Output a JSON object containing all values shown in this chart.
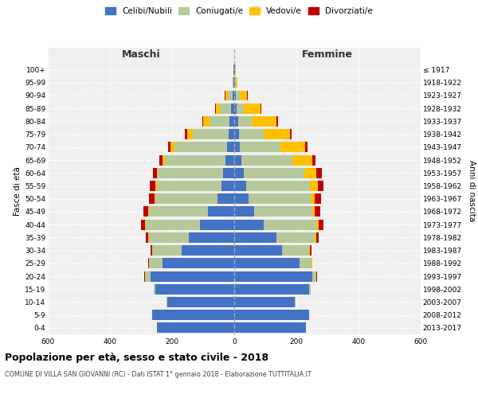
{
  "age_groups": [
    "0-4",
    "5-9",
    "10-14",
    "15-19",
    "20-24",
    "25-29",
    "30-34",
    "35-39",
    "40-44",
    "45-49",
    "50-54",
    "55-59",
    "60-64",
    "65-69",
    "70-74",
    "75-79",
    "80-84",
    "85-89",
    "90-94",
    "95-99",
    "100+"
  ],
  "birth_years": [
    "2013-2017",
    "2008-2012",
    "2003-2007",
    "1998-2002",
    "1993-1997",
    "1988-1992",
    "1983-1987",
    "1978-1982",
    "1973-1977",
    "1968-1972",
    "1963-1967",
    "1958-1962",
    "1953-1957",
    "1948-1952",
    "1943-1947",
    "1938-1942",
    "1933-1937",
    "1928-1932",
    "1923-1927",
    "1918-1922",
    "≤ 1917"
  ],
  "males": {
    "celibi": [
      250,
      265,
      215,
      255,
      270,
      230,
      170,
      145,
      110,
      85,
      55,
      40,
      35,
      28,
      22,
      18,
      15,
      10,
      5,
      2,
      2
    ],
    "coniugati": [
      0,
      0,
      2,
      5,
      18,
      45,
      95,
      130,
      175,
      190,
      200,
      210,
      210,
      195,
      170,
      115,
      65,
      35,
      15,
      2,
      0
    ],
    "vedovi": [
      0,
      0,
      0,
      0,
      0,
      0,
      0,
      1,
      2,
      2,
      2,
      3,
      5,
      8,
      12,
      18,
      20,
      15,
      8,
      2,
      0
    ],
    "divorziati": [
      0,
      0,
      0,
      0,
      2,
      2,
      5,
      8,
      12,
      15,
      18,
      18,
      12,
      10,
      8,
      8,
      2,
      2,
      2,
      0,
      0
    ]
  },
  "females": {
    "nubili": [
      230,
      240,
      195,
      240,
      250,
      210,
      155,
      135,
      95,
      65,
      45,
      38,
      30,
      22,
      18,
      15,
      12,
      8,
      5,
      2,
      2
    ],
    "coniugate": [
      0,
      0,
      2,
      5,
      15,
      38,
      85,
      125,
      170,
      185,
      200,
      205,
      195,
      165,
      130,
      80,
      45,
      22,
      12,
      2,
      0
    ],
    "vedove": [
      0,
      0,
      0,
      0,
      0,
      2,
      3,
      5,
      8,
      10,
      15,
      25,
      40,
      65,
      80,
      85,
      80,
      55,
      25,
      5,
      2
    ],
    "divorziate": [
      0,
      0,
      0,
      0,
      2,
      2,
      5,
      8,
      15,
      18,
      20,
      18,
      18,
      10,
      8,
      5,
      5,
      2,
      2,
      0,
      0
    ]
  },
  "colors": {
    "celibi": "#4472c4",
    "coniugati": "#b5c99a",
    "vedovi": "#ffc000",
    "divorziati": "#c00000"
  },
  "title": "Popolazione per età, sesso e stato civile - 2018",
  "subtitle": "COMUNE DI VILLA SAN GIOVANNI (RC) - Dati ISTAT 1° gennaio 2018 - Elaborazione TUTTITALIA.IT",
  "ylabel": "Fasce di età",
  "ylabel_right": "Anni di nascita",
  "xlabel_left": "Maschi",
  "xlabel_right": "Femmine",
  "xlim": 600,
  "legend_labels": [
    "Celibi/Nubili",
    "Coniugati/e",
    "Vedovi/e",
    "Divorziati/e"
  ],
  "background_color": "#f0f0f0"
}
